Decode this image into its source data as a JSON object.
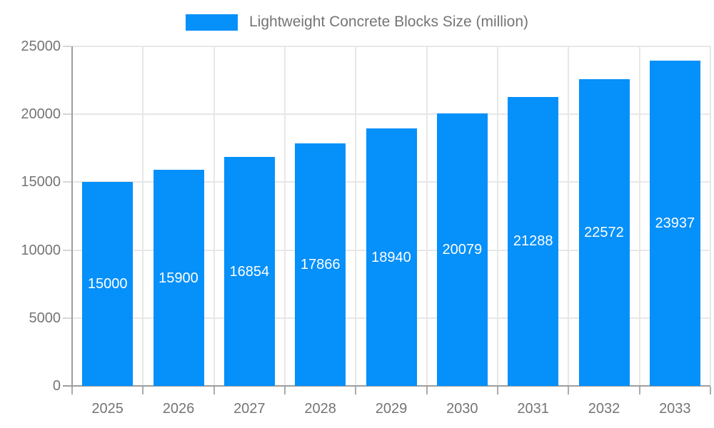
{
  "legend": {
    "label": "Lightweight Concrete Blocks Size (million)"
  },
  "chart_data": {
    "type": "bar",
    "title": "",
    "categories": [
      "2025",
      "2026",
      "2027",
      "2028",
      "2029",
      "2030",
      "2031",
      "2032",
      "2033"
    ],
    "values": [
      15000,
      15900,
      16854,
      17866,
      18940,
      20079,
      21288,
      22572,
      23937
    ],
    "series_name": "Lightweight Concrete Blocks Size (million)",
    "xlabel": "",
    "ylabel": "",
    "ylim": [
      0,
      25000
    ],
    "yticks": [
      0,
      5000,
      10000,
      15000,
      20000,
      25000
    ],
    "grid": "both",
    "legend_position": "top",
    "value_labels": "inside-center",
    "bar_color": "#0590fa",
    "bar_label_color": "#ffffff",
    "axis_text_color": "#757575",
    "axis_line_color": "#9e9e9e",
    "gridline_color": "#e7e7e7",
    "x_tick_color": "#ababab",
    "y_tick_color": "#d6d6d6"
  }
}
